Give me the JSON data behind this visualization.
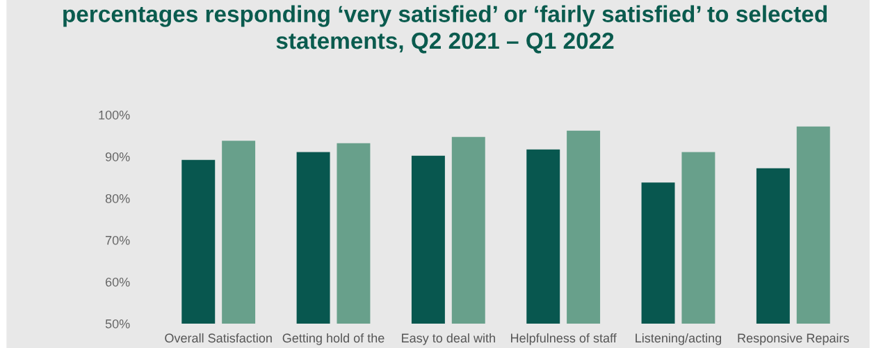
{
  "chart_data": {
    "type": "bar",
    "title": "percentages responding ‘very satisfied’ or ‘fairly satisfied’ to selected statements, Q2 2021 – Q1 2022",
    "categories": [
      "Overall Satisfaction",
      "Getting hold of the",
      "Easy to deal with",
      "Helpfulness of staff",
      "Listening/acting",
      "Responsive Repairs"
    ],
    "series": [
      {
        "color": "#08574f",
        "values": [
          89.2,
          91.1,
          90.2,
          91.7,
          83.8,
          87.2
        ]
      },
      {
        "color": "#68a08b",
        "values": [
          93.8,
          93.2,
          94.7,
          96.2,
          91.1,
          97.2
        ]
      }
    ],
    "ylim": [
      50,
      100
    ],
    "yticks": [
      {
        "value": 50,
        "label": "50%"
      },
      {
        "value": 60,
        "label": "60%"
      },
      {
        "value": 70,
        "label": "70%"
      },
      {
        "value": 80,
        "label": "80%"
      },
      {
        "value": 90,
        "label": "90%"
      },
      {
        "value": 100,
        "label": "100%"
      }
    ],
    "grid": false,
    "legend": false
  }
}
